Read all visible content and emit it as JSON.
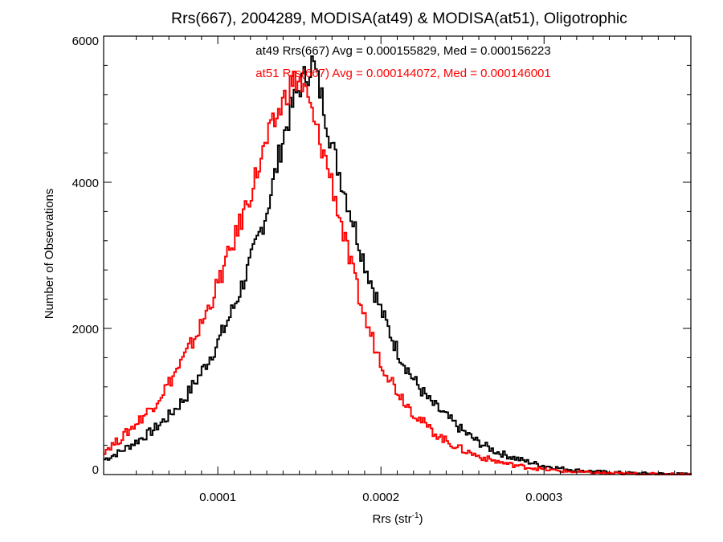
{
  "chart_data": {
    "type": "histogram",
    "title": "Rrs(667), 2004289, MODISA(at49) & MODISA(at51), Oligotrophic",
    "xlabel": "Rrs (str",
    "xlabel_sup": "-1",
    "xlabel_close": ")",
    "ylabel": "Number of Observations",
    "xlim": [
      3e-05,
      0.00039
    ],
    "ylim": [
      0,
      6000
    ],
    "x_ticks": [
      0.0001,
      0.0002,
      0.0003
    ],
    "x_tick_labels": [
      "0.0001",
      "0.0002",
      "0.0003"
    ],
    "y_ticks": [
      0,
      2000,
      4000,
      6000
    ],
    "y_tick_labels": [
      "0",
      "2000",
      "4000",
      "6000"
    ],
    "grid": false,
    "annotations": [
      {
        "text": "at49 Rrs(667) Avg = 0.000155829, Med = 0.000156223",
        "color": "#000000"
      },
      {
        "text": "at51 Rrs(667) Avg = 0.000144072, Med = 0.000146001",
        "color": "#ff0000"
      }
    ],
    "series": [
      {
        "color": "#000000",
        "bin_width": 1.2e-06,
        "peak_x": 0.000158,
        "x": [
          3e-05,
          4e-05,
          5e-05,
          6e-05,
          7e-05,
          8e-05,
          9e-05,
          0.0001,
          0.00011,
          0.00012,
          0.00013,
          0.000135,
          0.00014,
          0.000145,
          0.00015,
          0.000155,
          0.000158,
          0.00016,
          0.000165,
          0.00017,
          0.000175,
          0.00018,
          0.00019,
          0.0002,
          0.00021,
          0.00022,
          0.00023,
          0.00024,
          0.00025,
          0.00026,
          0.00027,
          0.00028,
          0.00029,
          0.0003,
          0.00031,
          0.00032,
          0.00033,
          0.00034,
          0.00035,
          0.00036,
          0.00037,
          0.00038,
          0.00039
        ],
        "y": [
          200,
          310,
          450,
          600,
          800,
          1050,
          1400,
          1800,
          2300,
          2900,
          3600,
          4100,
          4600,
          5000,
          5300,
          5500,
          5650,
          5500,
          5050,
          4500,
          4100,
          3700,
          2900,
          2250,
          1700,
          1300,
          1000,
          800,
          600,
          440,
          320,
          240,
          175,
          120,
          85,
          60,
          42,
          30,
          20,
          14,
          9,
          5,
          2
        ]
      },
      {
        "color": "#ff0000",
        "bin_width": 1.2e-06,
        "peak_x": 0.000152,
        "x": [
          3e-05,
          4e-05,
          5e-05,
          6e-05,
          7e-05,
          8e-05,
          9e-05,
          0.0001,
          0.00011,
          0.00012,
          0.00013,
          0.00014,
          0.000145,
          0.00015,
          0.000155,
          0.00016,
          0.000165,
          0.00017,
          0.000175,
          0.00018,
          0.00019,
          0.0002,
          0.00021,
          0.00022,
          0.00023,
          0.00024,
          0.00025,
          0.00026,
          0.00027,
          0.00028,
          0.00029,
          0.0003,
          0.00031,
          0.00032,
          0.00033,
          0.00034,
          0.00035,
          0.00036,
          0.00037,
          0.00038,
          0.00039
        ],
        "y": [
          320,
          480,
          700,
          930,
          1250,
          1620,
          2050,
          2600,
          3200,
          3850,
          4550,
          5100,
          5350,
          5400,
          5150,
          4750,
          4400,
          4000,
          3500,
          3000,
          2150,
          1550,
          1150,
          850,
          620,
          460,
          340,
          250,
          185,
          135,
          100,
          70,
          50,
          35,
          25,
          17,
          11,
          7,
          4,
          2,
          1
        ]
      }
    ]
  }
}
